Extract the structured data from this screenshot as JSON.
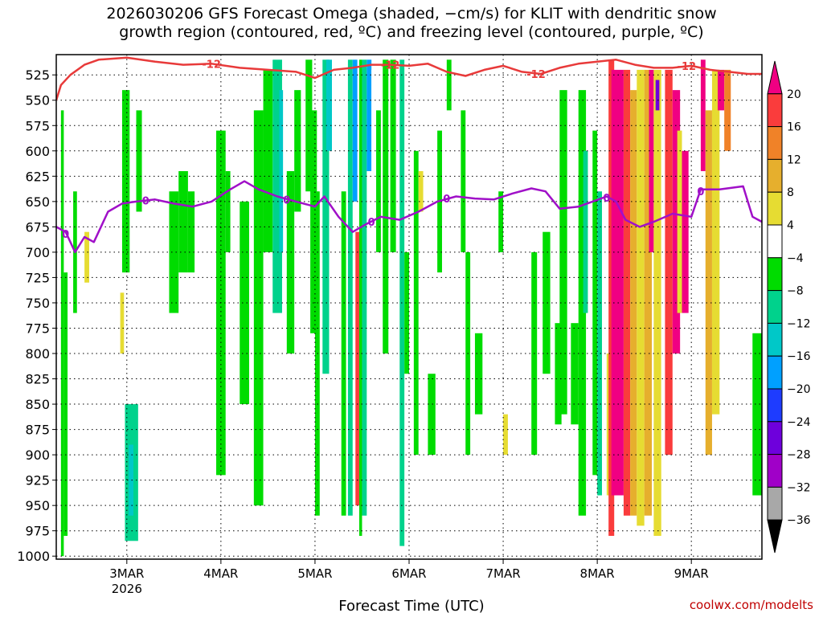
{
  "chart_data": {
    "type": "heatmap",
    "title_line1": "2026030206 GFS Forecast Omega (shaded, −cm/s) for KLIT with dendritic snow",
    "title_line2": "growth region (contoured, red, ºC) and freezing level (contoured, purple, ºC)",
    "xlabel": "Forecast Time (UTC)",
    "ylabel": "",
    "credit": "coolwx.com/modelts",
    "x_ticks": [
      "3MAR",
      "4MAR",
      "5MAR",
      "6MAR",
      "7MAR",
      "8MAR",
      "9MAR"
    ],
    "x_year_label": "2026",
    "x_range_days": [
      2.25,
      9.75
    ],
    "y_ticks": [
      525,
      550,
      575,
      600,
      625,
      650,
      675,
      700,
      725,
      750,
      775,
      800,
      825,
      850,
      875,
      900,
      925,
      950,
      975,
      1000
    ],
    "y_range": [
      505,
      1003
    ],
    "colorbar": {
      "levels": [
        -36,
        -32,
        -28,
        -24,
        -20,
        -16,
        -12,
        -8,
        -4,
        4,
        8,
        12,
        16,
        20
      ],
      "colors": [
        "#000000",
        "#a8a8a8",
        "#a000c8",
        "#6e00dc",
        "#1e3cff",
        "#00a0ff",
        "#00c8c8",
        "#00d28c",
        "#00dc00",
        "#ffffff",
        "#e6dc32",
        "#e6af2d",
        "#f08228",
        "#fa3c3c",
        "#f00082"
      ]
    },
    "contours": [
      {
        "name": "dendritic-growth -12C",
        "color": "#e83a3a",
        "label": "-12",
        "points": [
          [
            2.25,
            550
          ],
          [
            2.3,
            535
          ],
          [
            2.4,
            525
          ],
          [
            2.55,
            515
          ],
          [
            2.7,
            510
          ],
          [
            3.0,
            508
          ],
          [
            3.3,
            512
          ],
          [
            3.6,
            515
          ],
          [
            3.9,
            514
          ],
          [
            4.2,
            518
          ],
          [
            4.5,
            520
          ],
          [
            4.8,
            522
          ],
          [
            5.0,
            528
          ],
          [
            5.2,
            520
          ],
          [
            5.4,
            518
          ],
          [
            5.6,
            515
          ],
          [
            5.8,
            515
          ],
          [
            6.0,
            516
          ],
          [
            6.2,
            514
          ],
          [
            6.4,
            522
          ],
          [
            6.6,
            526
          ],
          [
            6.8,
            520
          ],
          [
            7.0,
            516
          ],
          [
            7.2,
            522
          ],
          [
            7.4,
            524
          ],
          [
            7.6,
            518
          ],
          [
            7.8,
            514
          ],
          [
            8.0,
            512
          ],
          [
            8.2,
            510
          ],
          [
            8.4,
            515
          ],
          [
            8.6,
            518
          ],
          [
            8.8,
            518
          ],
          [
            9.0,
            516
          ],
          [
            9.2,
            520
          ],
          [
            9.4,
            522
          ],
          [
            9.6,
            524
          ],
          [
            9.75,
            524
          ]
        ],
        "label_at": [
          [
            3.9,
            514
          ],
          [
            5.8,
            515
          ],
          [
            7.35,
            524
          ],
          [
            8.95,
            516
          ]
        ]
      },
      {
        "name": "freezing-level 0C",
        "color": "#a010c8",
        "label": "0",
        "points": [
          [
            2.25,
            675
          ],
          [
            2.35,
            680
          ],
          [
            2.45,
            700
          ],
          [
            2.55,
            685
          ],
          [
            2.65,
            690
          ],
          [
            2.8,
            660
          ],
          [
            2.95,
            652
          ],
          [
            3.1,
            650
          ],
          [
            3.3,
            648
          ],
          [
            3.5,
            652
          ],
          [
            3.7,
            655
          ],
          [
            3.9,
            650
          ],
          [
            4.1,
            638
          ],
          [
            4.25,
            630
          ],
          [
            4.4,
            638
          ],
          [
            4.6,
            645
          ],
          [
            4.8,
            650
          ],
          [
            5.0,
            655
          ],
          [
            5.1,
            645
          ],
          [
            5.25,
            665
          ],
          [
            5.4,
            680
          ],
          [
            5.55,
            672
          ],
          [
            5.7,
            665
          ],
          [
            5.9,
            668
          ],
          [
            6.1,
            660
          ],
          [
            6.3,
            650
          ],
          [
            6.5,
            645
          ],
          [
            6.7,
            647
          ],
          [
            6.9,
            648
          ],
          [
            7.1,
            642
          ],
          [
            7.3,
            637
          ],
          [
            7.45,
            640
          ],
          [
            7.6,
            657
          ],
          [
            7.8,
            655
          ],
          [
            7.95,
            650
          ],
          [
            8.1,
            645
          ],
          [
            8.2,
            650
          ],
          [
            8.3,
            668
          ],
          [
            8.45,
            675
          ],
          [
            8.6,
            670
          ],
          [
            8.8,
            662
          ],
          [
            9.0,
            665
          ],
          [
            9.1,
            638
          ],
          [
            9.3,
            638
          ],
          [
            9.55,
            635
          ],
          [
            9.65,
            665
          ],
          [
            9.75,
            670
          ]
        ],
        "label_at": [
          [
            2.35,
            682
          ],
          [
            3.2,
            649
          ],
          [
            4.7,
            648
          ],
          [
            5.6,
            670
          ],
          [
            6.4,
            647
          ],
          [
            8.1,
            646
          ],
          [
            9.1,
            640
          ]
        ]
      }
    ]
  }
}
